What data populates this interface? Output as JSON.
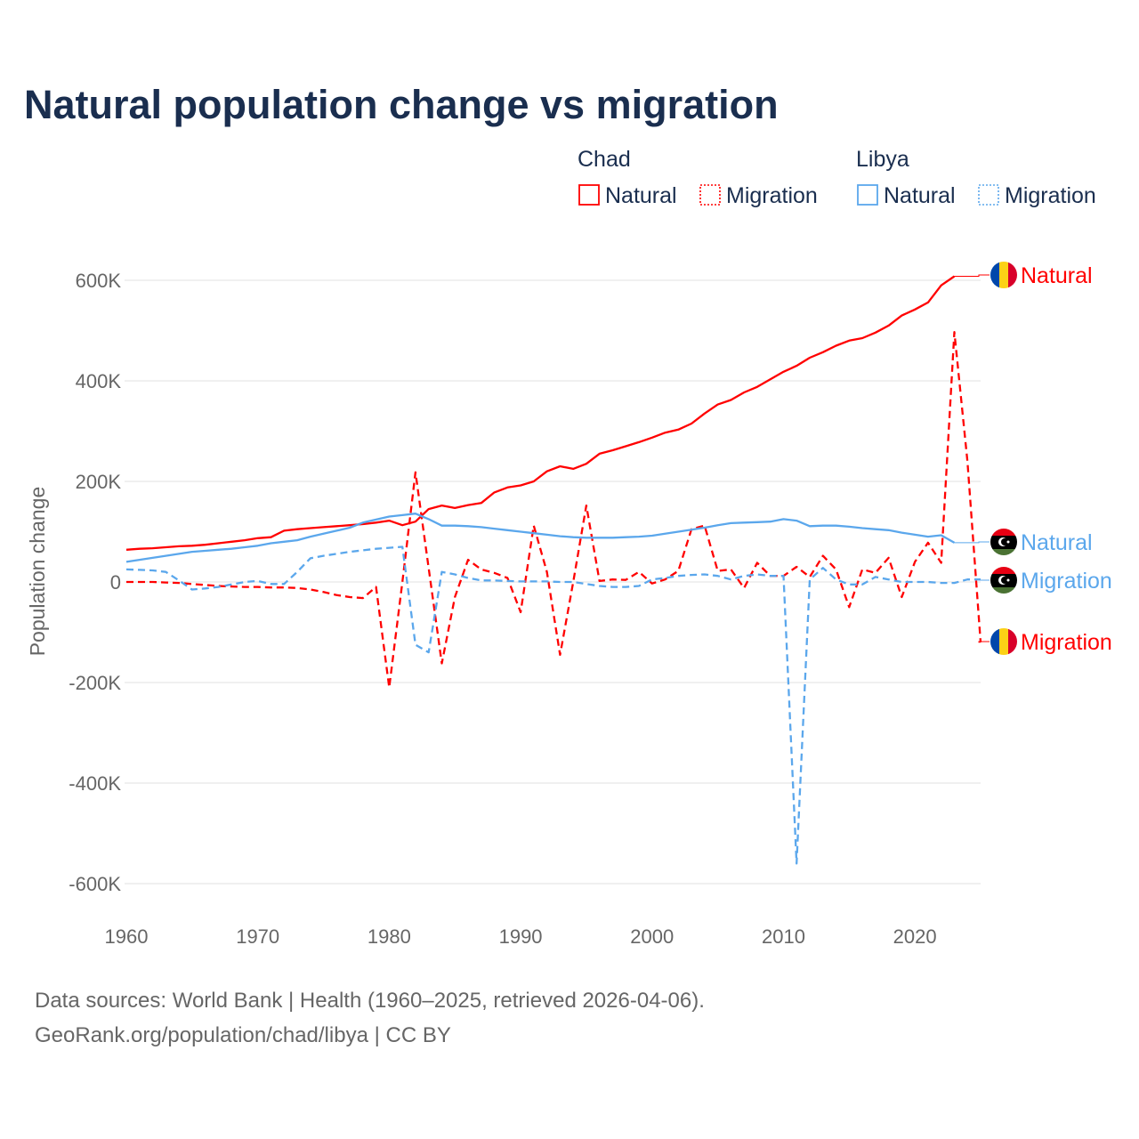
{
  "title": "Natural population change vs migration",
  "legend": {
    "groups": [
      {
        "name": "Chad",
        "items": [
          "Natural",
          "Migration"
        ]
      },
      {
        "name": "Libya",
        "items": [
          "Natural",
          "Migration"
        ]
      }
    ]
  },
  "colors": {
    "chad": "#ff0000",
    "libya": "#5ba7ec",
    "grid": "#e6e6e6",
    "text": "#1a2e4f",
    "muted": "#666666"
  },
  "source": {
    "line1": "Data sources: World Bank | Health (1960–2025, retrieved 2026-04-06).",
    "line2": "GeoRank.org/population/chad/libya | CC BY"
  },
  "chart_data": {
    "type": "line",
    "title": "Natural population change vs migration",
    "xlabel": "",
    "ylabel": "Population change",
    "xlim": [
      1960,
      2025
    ],
    "ylim": [
      -650000,
      650000
    ],
    "x_start": 1960,
    "xticks": [
      1960,
      1970,
      1980,
      1990,
      2000,
      2010,
      2020
    ],
    "xtick_labels": [
      "1960",
      "1970",
      "1980",
      "1990",
      "2000",
      "2010",
      "2020"
    ],
    "yticks": [
      600000,
      400000,
      200000,
      0,
      -200000,
      -400000,
      -600000
    ],
    "ytick_labels": [
      "600K",
      "400K",
      "200K",
      "0",
      "-200K",
      "-400K",
      "-600K"
    ],
    "grid": true,
    "legend_position": "top-right",
    "series": [
      {
        "name": "Chad Natural",
        "label": "Natural",
        "country": "Chad",
        "color": "#ff0000",
        "dash": "solid",
        "flag": "chad-flag",
        "values_thousands": [
          64,
          66,
          67,
          69,
          71,
          72,
          74,
          77,
          80,
          83,
          87,
          89,
          102,
          105,
          107,
          109,
          111,
          113,
          115,
          118,
          122,
          113,
          120,
          145,
          152,
          147,
          153,
          157,
          178,
          188,
          192,
          200,
          220,
          230,
          225,
          235,
          255,
          262,
          270,
          278,
          287,
          297,
          303,
          315,
          335,
          353,
          362,
          377,
          388,
          403,
          418,
          430,
          446,
          457,
          470,
          480,
          485,
          496,
          510,
          530,
          542,
          556,
          590,
          608,
          null,
          null
        ]
      },
      {
        "name": "Chad Migration",
        "label": "Migration",
        "country": "Chad",
        "color": "#ff0000",
        "dash": "dashed",
        "flag": "chad-flag",
        "values_thousands": [
          0,
          0,
          0,
          -1,
          -2,
          -4,
          -6,
          -8,
          -9,
          -10,
          -10,
          -11,
          -11,
          -12,
          -15,
          -20,
          -26,
          -30,
          -32,
          -10,
          -210,
          0,
          218,
          28,
          -162,
          -30,
          44,
          25,
          18,
          8,
          -60,
          112,
          20,
          -145,
          0,
          152,
          2,
          5,
          4,
          20,
          -3,
          5,
          22,
          105,
          112,
          22,
          25,
          -12,
          38,
          12,
          12,
          30,
          10,
          52,
          25,
          -50,
          25,
          18,
          48,
          -30,
          40,
          78,
          38,
          497,
          240,
          -120
        ]
      },
      {
        "name": "Libya Natural",
        "label": "Natural",
        "country": "Libya",
        "color": "#5ba7ec",
        "dash": "solid",
        "flag": "libya-flag",
        "values_thousands": [
          40,
          44,
          48,
          52,
          56,
          60,
          62,
          64,
          66,
          69,
          72,
          77,
          80,
          83,
          90,
          96,
          102,
          108,
          118,
          124,
          130,
          133,
          136,
          125,
          112,
          112,
          111,
          109,
          106,
          103,
          100,
          97,
          94,
          91,
          89,
          88,
          88,
          88,
          89,
          90,
          92,
          96,
          100,
          104,
          108,
          113,
          117,
          118,
          119,
          120,
          125,
          122,
          111,
          112,
          112,
          110,
          107,
          105,
          103,
          98,
          94,
          90,
          93,
          78,
          null,
          null
        ]
      },
      {
        "name": "Libya Migration",
        "label": "Migration",
        "country": "Libya",
        "color": "#5ba7ec",
        "dash": "dashed",
        "flag": "libya-flag",
        "values_thousands": [
          25,
          24,
          23,
          20,
          3,
          -15,
          -13,
          -10,
          -5,
          0,
          2,
          -4,
          -4,
          20,
          47,
          52,
          56,
          60,
          63,
          66,
          68,
          70,
          -125,
          -140,
          20,
          15,
          8,
          3,
          3,
          2,
          1,
          1,
          1,
          0,
          0,
          -4,
          -8,
          -10,
          -10,
          -8,
          5,
          8,
          12,
          14,
          15,
          12,
          5,
          12,
          15,
          12,
          12,
          -560,
          5,
          28,
          5,
          -5,
          -5,
          10,
          5,
          0,
          0,
          0,
          -2,
          -2,
          5,
          5
        ]
      }
    ]
  }
}
